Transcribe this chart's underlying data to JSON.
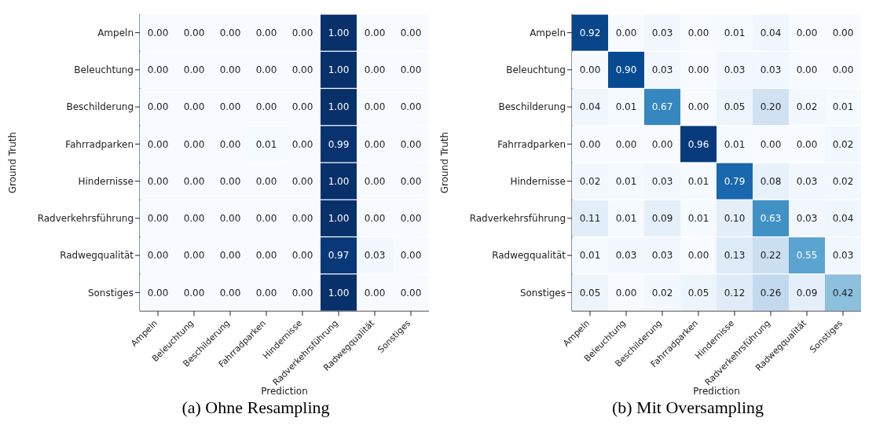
{
  "chart_data": [
    {
      "type": "heatmap",
      "title": "(a) Ohne Resampling",
      "xlabel": "Prediction",
      "ylabel": "Ground Truth",
      "data_labels": true,
      "grid": false,
      "legend": false,
      "categories": [
        "Ampeln",
        "Beleuchtung",
        "Beschilderung",
        "Fahrradparken",
        "Hindernisse",
        "Radverkehrsführung",
        "Radwegqualität",
        "Sonstiges"
      ],
      "y_categories": [
        "Ampeln",
        "Beleuchtung",
        "Beschilderung",
        "Fahrradparken",
        "Hindernisse",
        "Radverkehrsführung",
        "Radwegqualität",
        "Sonstiges"
      ],
      "cells": [
        [
          0,
          0,
          0,
          0,
          0,
          1,
          0,
          0
        ],
        [
          0,
          0,
          0,
          0,
          0,
          1,
          0,
          0
        ],
        [
          0,
          0,
          0,
          0,
          0,
          1,
          0,
          0
        ],
        [
          0,
          0,
          0,
          0.01,
          0,
          0.99,
          0,
          0
        ],
        [
          0,
          0,
          0,
          0,
          0,
          1,
          0,
          0
        ],
        [
          0,
          0,
          0,
          0,
          0,
          1,
          0,
          0
        ],
        [
          0,
          0,
          0,
          0,
          0,
          0.97,
          0.03,
          0
        ],
        [
          0,
          0,
          0,
          0,
          0,
          1,
          0,
          0
        ]
      ],
      "cell_labels": [
        [
          "0.00",
          "0.00",
          "0.00",
          "0.00",
          "0.00",
          "1.00",
          "0.00",
          "0.00"
        ],
        [
          "0.00",
          "0.00",
          "0.00",
          "0.00",
          "0.00",
          "1.00",
          "0.00",
          "0.00"
        ],
        [
          "0.00",
          "0.00",
          "0.00",
          "0.00",
          "0.00",
          "1.00",
          "0.00",
          "0.00"
        ],
        [
          "0.00",
          "0.00",
          "0.00",
          "0.01",
          "0.00",
          "0.99",
          "0.00",
          "0.00"
        ],
        [
          "0.00",
          "0.00",
          "0.00",
          "0.00",
          "0.00",
          "1.00",
          "0.00",
          "0.00"
        ],
        [
          "0.00",
          "0.00",
          "0.00",
          "0.00",
          "0.00",
          "1.00",
          "0.00",
          "0.00"
        ],
        [
          "0.00",
          "0.00",
          "0.00",
          "0.00",
          "0.00",
          "0.97",
          "0.03",
          "0.00"
        ],
        [
          "0.00",
          "0.00",
          "0.00",
          "0.00",
          "0.00",
          "1.00",
          "0.00",
          "0.00"
        ]
      ]
    },
    {
      "type": "heatmap",
      "title": "(b) Mit Oversampling",
      "xlabel": "Prediction",
      "ylabel": "Ground Truth",
      "data_labels": true,
      "grid": false,
      "legend": false,
      "categories": [
        "Ampeln",
        "Beleuchtung",
        "Beschilderung",
        "Fahrradparken",
        "Hindernisse",
        "Radverkehrsführung",
        "Radwegqualität",
        "Sonstiges"
      ],
      "y_categories": [
        "Ampeln",
        "Beleuchtung",
        "Beschilderung",
        "Fahrradparken",
        "Hindernisse",
        "Radverkehrsführung",
        "Radwegqualität",
        "Sonstiges"
      ],
      "cells": [
        [
          0.92,
          0,
          0.03,
          0,
          0.01,
          0.04,
          0,
          0
        ],
        [
          0,
          0.9,
          0.03,
          0,
          0.03,
          0.03,
          0,
          0
        ],
        [
          0.04,
          0.01,
          0.67,
          0,
          0.05,
          0.2,
          0.02,
          0.01
        ],
        [
          0,
          0,
          0,
          0.96,
          0.01,
          0,
          0,
          0.02
        ],
        [
          0.02,
          0.01,
          0.03,
          0.01,
          0.79,
          0.08,
          0.03,
          0.02
        ],
        [
          0.11,
          0.01,
          0.09,
          0.01,
          0.1,
          0.63,
          0.03,
          0.04
        ],
        [
          0.01,
          0.03,
          0.03,
          0,
          0.13,
          0.22,
          0.55,
          0.03
        ],
        [
          0.05,
          0,
          0.02,
          0.05,
          0.12,
          0.26,
          0.09,
          0.42
        ]
      ],
      "cell_labels": [
        [
          "0.92",
          "0.00",
          "0.03",
          "0.00",
          "0.01",
          "0.04",
          "0.00",
          "0.00"
        ],
        [
          "0.00",
          "0.90",
          "0.03",
          "0.00",
          "0.03",
          "0.03",
          "0.00",
          "0.00"
        ],
        [
          "0.04",
          "0.01",
          "0.67",
          "0.00",
          "0.05",
          "0.20",
          "0.02",
          "0.01"
        ],
        [
          "0.00",
          "0.00",
          "0.00",
          "0.96",
          "0.01",
          "0.00",
          "0.00",
          "0.02"
        ],
        [
          "0.02",
          "0.01",
          "0.03",
          "0.01",
          "0.79",
          "0.08",
          "0.03",
          "0.02"
        ],
        [
          "0.11",
          "0.01",
          "0.09",
          "0.01",
          "0.10",
          "0.63",
          "0.03",
          "0.04"
        ],
        [
          "0.01",
          "0.03",
          "0.03",
          "0.00",
          "0.13",
          "0.22",
          "0.55",
          "0.03"
        ],
        [
          "0.05",
          "0.00",
          "0.02",
          "0.05",
          "0.12",
          "0.26",
          "0.09",
          "0.42"
        ]
      ]
    }
  ]
}
